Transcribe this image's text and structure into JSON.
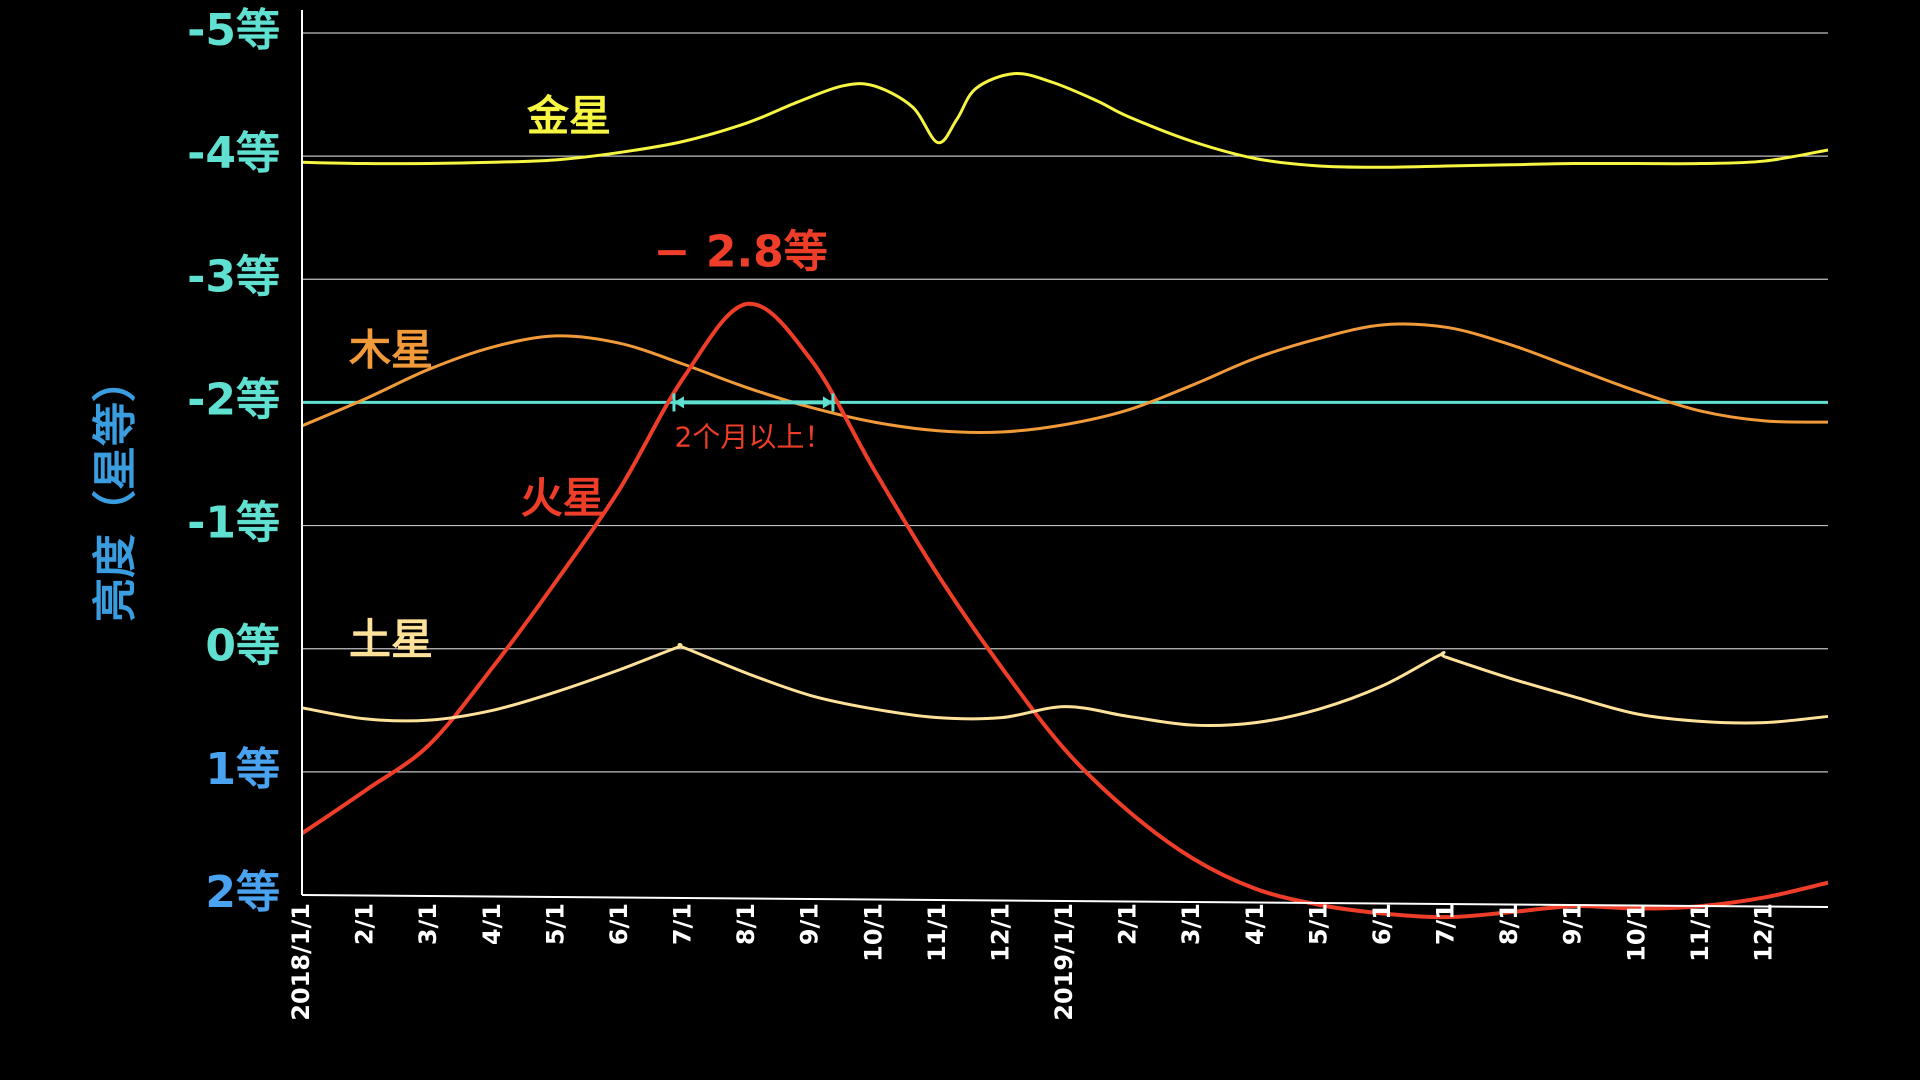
{
  "chart_data": {
    "type": "line",
    "xlabel": "",
    "ylabel": "亮度（星等）",
    "ylim": [
      2,
      -5
    ],
    "xlim_months": [
      0,
      24
    ],
    "grid": true,
    "y_ticks": [
      {
        "value": -5,
        "label": "-5等"
      },
      {
        "value": -4,
        "label": "-4等"
      },
      {
        "value": -3,
        "label": "-3等"
      },
      {
        "value": -2,
        "label": "-2等"
      },
      {
        "value": -1,
        "label": "-1等"
      },
      {
        "value": 0,
        "label": "0等"
      },
      {
        "value": 1,
        "label": "1等"
      },
      {
        "value": 2,
        "label": "2等"
      }
    ],
    "x_ticks": [
      {
        "month": 0,
        "label": "2018/1/1"
      },
      {
        "month": 1,
        "label": "2/1"
      },
      {
        "month": 2,
        "label": "3/1"
      },
      {
        "month": 3,
        "label": "4/1"
      },
      {
        "month": 4,
        "label": "5/1"
      },
      {
        "month": 5,
        "label": "6/1"
      },
      {
        "month": 6,
        "label": "7/1"
      },
      {
        "month": 7,
        "label": "8/1"
      },
      {
        "month": 8,
        "label": "9/1"
      },
      {
        "month": 9,
        "label": "10/1"
      },
      {
        "month": 10,
        "label": "11/1"
      },
      {
        "month": 11,
        "label": "12/1"
      },
      {
        "month": 12,
        "label": "2019/1/1"
      },
      {
        "month": 13,
        "label": "2/1"
      },
      {
        "month": 14,
        "label": "3/1"
      },
      {
        "month": 15,
        "label": "4/1"
      },
      {
        "month": 16,
        "label": "5/1"
      },
      {
        "month": 17,
        "label": "6/1"
      },
      {
        "month": 18,
        "label": "7/1"
      },
      {
        "month": 19,
        "label": "8/1"
      },
      {
        "month": 20,
        "label": "9/1"
      },
      {
        "month": 21,
        "label": "10/1"
      },
      {
        "month": 22,
        "label": "11/1"
      },
      {
        "month": 23,
        "label": "12/1"
      }
    ],
    "series": [
      {
        "name": "金星",
        "key": "venus",
        "color": "#f5f542",
        "label_at": {
          "month": 4.2,
          "value": -4.3
        },
        "points": [
          [
            0,
            -3.95
          ],
          [
            1,
            -3.94
          ],
          [
            2,
            -3.94
          ],
          [
            3,
            -3.95
          ],
          [
            4,
            -3.97
          ],
          [
            5,
            -4.03
          ],
          [
            6,
            -4.12
          ],
          [
            7,
            -4.27
          ],
          [
            7.8,
            -4.44
          ],
          [
            8.5,
            -4.57
          ],
          [
            9,
            -4.57
          ],
          [
            9.6,
            -4.4
          ],
          [
            10,
            -4.11
          ],
          [
            10.3,
            -4.3
          ],
          [
            10.6,
            -4.55
          ],
          [
            11.2,
            -4.67
          ],
          [
            11.8,
            -4.6
          ],
          [
            12.5,
            -4.45
          ],
          [
            13,
            -4.32
          ],
          [
            14,
            -4.12
          ],
          [
            15,
            -3.98
          ],
          [
            16,
            -3.92
          ],
          [
            17,
            -3.91
          ],
          [
            18,
            -3.92
          ],
          [
            19,
            -3.93
          ],
          [
            20,
            -3.94
          ],
          [
            21,
            -3.94
          ],
          [
            22,
            -3.94
          ],
          [
            23,
            -3.96
          ],
          [
            24,
            -4.05
          ]
        ]
      },
      {
        "name": "木星",
        "key": "jupiter",
        "color": "#f09a3a",
        "label_at": {
          "month": 1.4,
          "value": -2.4
        },
        "points": [
          [
            0,
            -1.81
          ],
          [
            1,
            -2.03
          ],
          [
            2,
            -2.27
          ],
          [
            3,
            -2.45
          ],
          [
            4,
            -2.54
          ],
          [
            5,
            -2.48
          ],
          [
            6,
            -2.31
          ],
          [
            7,
            -2.12
          ],
          [
            8,
            -1.96
          ],
          [
            9,
            -1.84
          ],
          [
            10,
            -1.77
          ],
          [
            11,
            -1.76
          ],
          [
            12,
            -1.82
          ],
          [
            13,
            -1.94
          ],
          [
            14,
            -2.14
          ],
          [
            15,
            -2.36
          ],
          [
            16,
            -2.52
          ],
          [
            17,
            -2.63
          ],
          [
            18,
            -2.61
          ],
          [
            19,
            -2.47
          ],
          [
            20,
            -2.28
          ],
          [
            21,
            -2.09
          ],
          [
            22,
            -1.93
          ],
          [
            23,
            -1.85
          ],
          [
            24,
            -1.84
          ]
        ]
      },
      {
        "name": "火星",
        "key": "mars",
        "color": "#ee3d29",
        "label_at": {
          "month": 4.1,
          "value": -1.2
        },
        "points": [
          [
            0,
            1.5
          ],
          [
            1,
            1.15
          ],
          [
            2,
            0.78
          ],
          [
            3,
            0.15
          ],
          [
            4,
            -0.55
          ],
          [
            5,
            -1.3
          ],
          [
            6,
            -2.2
          ],
          [
            7,
            -2.8
          ],
          [
            8,
            -2.35
          ],
          [
            9,
            -1.45
          ],
          [
            10,
            -0.6
          ],
          [
            11,
            0.15
          ],
          [
            12,
            0.82
          ],
          [
            13,
            1.32
          ],
          [
            14,
            1.7
          ],
          [
            15,
            1.95
          ],
          [
            16,
            2.08
          ],
          [
            17,
            2.15
          ],
          [
            18,
            2.18
          ],
          [
            19,
            2.14
          ],
          [
            20,
            2.09
          ],
          [
            21,
            2.11
          ],
          [
            22,
            2.09
          ],
          [
            23,
            2.02
          ],
          [
            24,
            1.9
          ]
        ]
      },
      {
        "name": "土星",
        "key": "saturn",
        "color": "#ffe29a",
        "label_at": {
          "month": 1.4,
          "value": -0.05
        },
        "points": [
          [
            0,
            0.48
          ],
          [
            1,
            0.57
          ],
          [
            2,
            0.58
          ],
          [
            3,
            0.5
          ],
          [
            4,
            0.35
          ],
          [
            5,
            0.17
          ],
          [
            5.9,
            -0.01
          ],
          [
            6,
            -0.01
          ],
          [
            7,
            0.2
          ],
          [
            8,
            0.38
          ],
          [
            9,
            0.49
          ],
          [
            10,
            0.56
          ],
          [
            11,
            0.56
          ],
          [
            12,
            0.47
          ],
          [
            13,
            0.55
          ],
          [
            14,
            0.62
          ],
          [
            15,
            0.6
          ],
          [
            16,
            0.49
          ],
          [
            17,
            0.3
          ],
          [
            17.9,
            0.05
          ],
          [
            18,
            0.07
          ],
          [
            19,
            0.24
          ],
          [
            20,
            0.39
          ],
          [
            21,
            0.53
          ],
          [
            22,
            0.59
          ],
          [
            23,
            0.6
          ],
          [
            24,
            0.55
          ]
        ]
      }
    ],
    "reference_line": {
      "value": -2,
      "color": "#5fe0d0"
    },
    "annotations": {
      "peak_text": "− 2.8等",
      "peak_at": {
        "month": 6.9,
        "value": -3.2
      },
      "duration_text": "2个月以上！",
      "duration_range": [
        5.85,
        8.35
      ],
      "duration_value": -2
    },
    "colors": {
      "background": "#000000",
      "grid": "#bfbfbf",
      "tick_neg": "#5fe0d0",
      "tick_pos": "#4aa3f0",
      "ylabel": "#3a9de0",
      "axis": "#ffffff",
      "duration_text": "#ee3d29"
    }
  }
}
